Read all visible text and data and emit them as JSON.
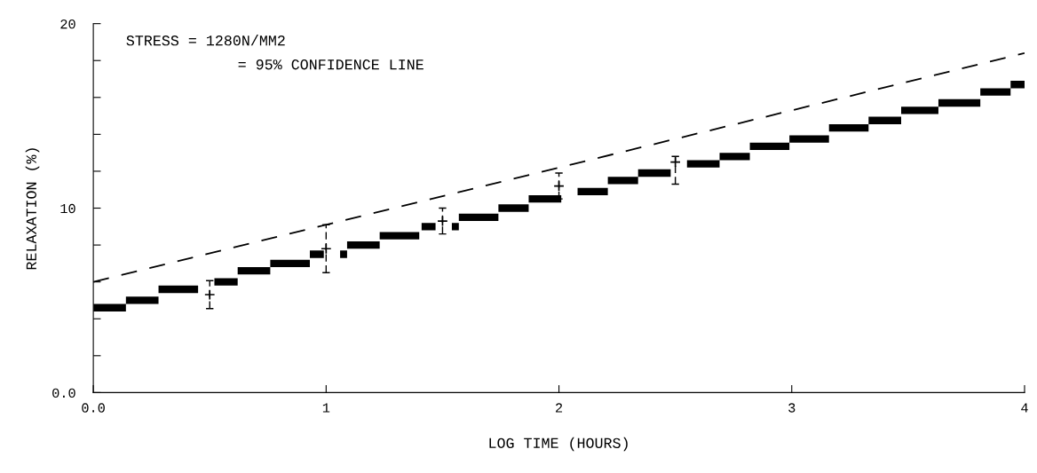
{
  "chart_data": {
    "type": "line",
    "xlabel": "LOG TIME (HOURS)",
    "ylabel": "RELAXATION (%)",
    "annotations": [
      "STRESS = 1280N/MM2",
      "= 95% CONFIDENCE LINE"
    ],
    "xlim": [
      0,
      4
    ],
    "ylim": [
      0,
      20
    ],
    "xticks": [
      {
        "value": 0,
        "label": "0.0"
      },
      1,
      2,
      3,
      4
    ],
    "yticks": [
      {
        "value": 0,
        "label": "0.0"
      },
      {
        "value": 2,
        "label": null
      },
      {
        "value": 4,
        "label": null
      },
      {
        "value": 6,
        "label": null
      },
      {
        "value": 8,
        "label": null
      },
      10,
      {
        "value": 12,
        "label": null
      },
      {
        "value": 14,
        "label": null
      },
      {
        "value": 16,
        "label": null
      },
      {
        "value": 18,
        "label": null
      },
      20
    ],
    "series": [
      {
        "color": "#000000",
        "line_style": "solid",
        "x": [
          0.0,
          0.14,
          null,
          0.14,
          0.28,
          null,
          0.28,
          0.45,
          null,
          0.52,
          0.62,
          null,
          0.62,
          0.76,
          null,
          0.76,
          0.93,
          null,
          0.93,
          0.99,
          null,
          1.06,
          1.09,
          null,
          1.09,
          1.23,
          null,
          1.23,
          1.4,
          null,
          1.41,
          1.47,
          null,
          1.54,
          1.57,
          null,
          1.57,
          1.74,
          null,
          1.74,
          1.87,
          null,
          1.87,
          2.01,
          null,
          2.08,
          2.21,
          null,
          2.21,
          2.34,
          null,
          2.34,
          2.48,
          null,
          2.55,
          2.69,
          null,
          2.69,
          2.82,
          null,
          2.82,
          2.99,
          null,
          2.99,
          3.16,
          null,
          3.16,
          3.33,
          null,
          3.33,
          3.47,
          null,
          3.47,
          3.63,
          null,
          3.63,
          3.81,
          null,
          3.81,
          3.94,
          null,
          3.94,
          4.0
        ],
        "values": [
          4.6,
          4.6,
          null,
          5.0,
          5.0,
          null,
          5.6,
          5.6,
          null,
          6.0,
          6.0,
          null,
          6.6,
          6.6,
          null,
          7.0,
          7.0,
          null,
          7.5,
          7.5,
          null,
          7.5,
          7.5,
          null,
          8.0,
          8.0,
          null,
          8.5,
          8.5,
          null,
          9.0,
          9.0,
          null,
          9.0,
          9.0,
          null,
          9.5,
          9.5,
          null,
          10.0,
          10.0,
          null,
          10.5,
          10.5,
          null,
          10.9,
          10.9,
          null,
          11.5,
          11.5,
          null,
          11.9,
          11.9,
          null,
          12.4,
          12.4,
          null,
          12.8,
          12.8,
          null,
          13.35,
          13.35,
          null,
          13.75,
          13.75,
          null,
          14.35,
          14.35,
          null,
          14.75,
          14.75,
          null,
          15.3,
          15.3,
          null,
          15.7,
          15.7,
          null,
          16.3,
          16.3,
          null,
          16.7,
          16.7
        ]
      },
      {
        "color": "#000000",
        "line_style": "dashed",
        "x": [
          0,
          4
        ],
        "values": [
          6.0,
          18.4
        ]
      },
      {
        "type": "scatter",
        "color": "#000000",
        "marker": "cross",
        "x": [
          0.5,
          1.0,
          1.5,
          2.0,
          2.5
        ],
        "values": [
          5.31,
          7.8,
          9.3,
          11.2,
          12.5
        ],
        "errors": [
          [
            4.55,
            6.07
          ],
          [
            6.5,
            9.1
          ],
          [
            8.6,
            10.0
          ],
          [
            10.5,
            11.9
          ],
          [
            11.3,
            12.8
          ]
        ]
      }
    ]
  }
}
